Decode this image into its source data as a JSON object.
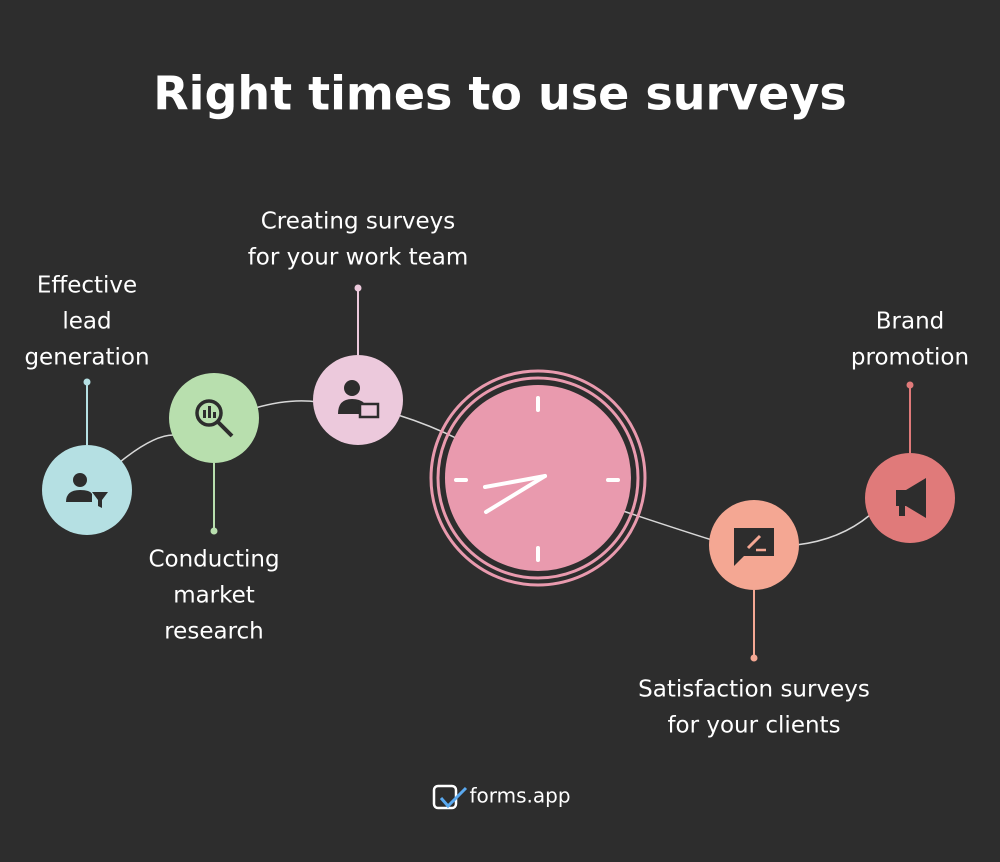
{
  "header": {
    "title": "Right times to use surveys"
  },
  "items": [
    {
      "label": [
        "Effective",
        "lead",
        "generation"
      ]
    },
    {
      "label": [
        "Conducting",
        "market",
        "research"
      ]
    },
    {
      "label": [
        "Creating surveys",
        "for your work team"
      ]
    },
    {
      "label": [
        "Satisfaction surveys",
        "for your clients"
      ]
    },
    {
      "label": [
        "Brand",
        "promotion"
      ]
    }
  ],
  "footer": {
    "brand": "forms.app"
  }
}
